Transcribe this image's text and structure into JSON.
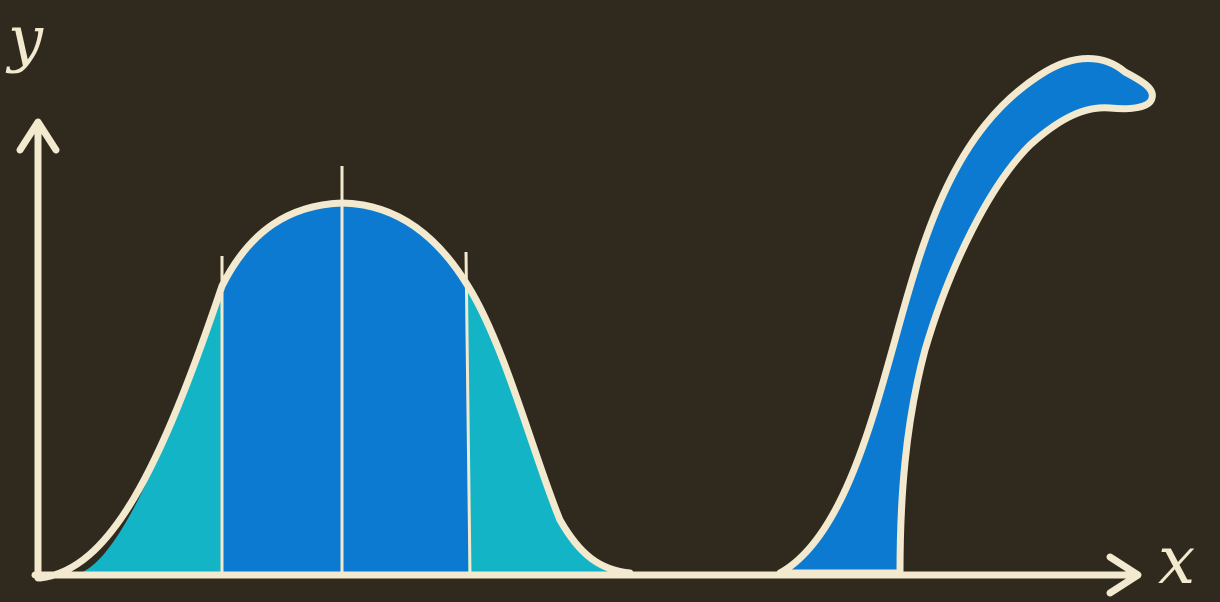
{
  "axes": {
    "x_label": "x",
    "y_label": "y"
  },
  "colors": {
    "background": "#2f291e",
    "outline": "#f2e9cf",
    "central_fill": "#0b7ad0",
    "tail_fill": "#12b4c6",
    "neck_fill": "#0b7ad0"
  }
}
